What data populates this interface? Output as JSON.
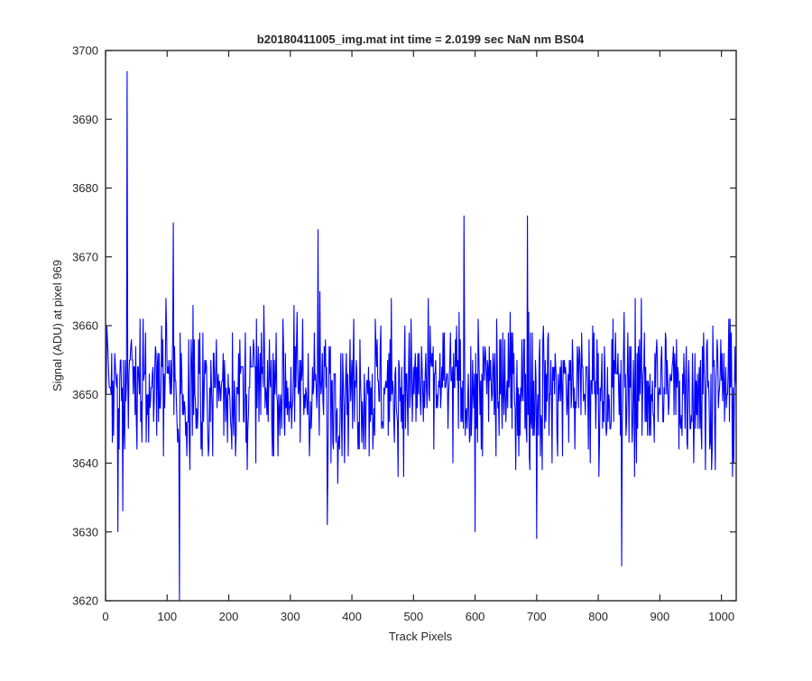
{
  "chart_data": {
    "type": "line",
    "title": "b20180411005_img.mat int time = 2.0199 sec  NaN nm BS04",
    "xlabel": "Track Pixels",
    "ylabel": "Signal (ADU) at pixel 969",
    "xlim": [
      0,
      1024
    ],
    "ylim": [
      3620,
      3700
    ],
    "xticks": [
      0,
      100,
      200,
      300,
      400,
      500,
      600,
      700,
      800,
      900,
      1000
    ],
    "yticks": [
      3620,
      3630,
      3640,
      3650,
      3660,
      3670,
      3680,
      3690,
      3700
    ],
    "grid": false,
    "series": [
      {
        "color": "#0000ff",
        "mean": 3651,
        "x_range": [
          1,
          1024
        ],
        "notable_points": [
          {
            "x": 35,
            "y": 3697
          },
          {
            "x": 120,
            "y": 3620
          },
          {
            "x": 110,
            "y": 3675
          },
          {
            "x": 345,
            "y": 3674
          },
          {
            "x": 582,
            "y": 3676
          },
          {
            "x": 685,
            "y": 3676
          },
          {
            "x": 838,
            "y": 3625
          },
          {
            "x": 700,
            "y": 3629
          },
          {
            "x": 360,
            "y": 3631
          },
          {
            "x": 600,
            "y": 3630
          },
          {
            "x": 20,
            "y": 3630
          },
          {
            "x": 28,
            "y": 3633
          }
        ]
      }
    ]
  }
}
